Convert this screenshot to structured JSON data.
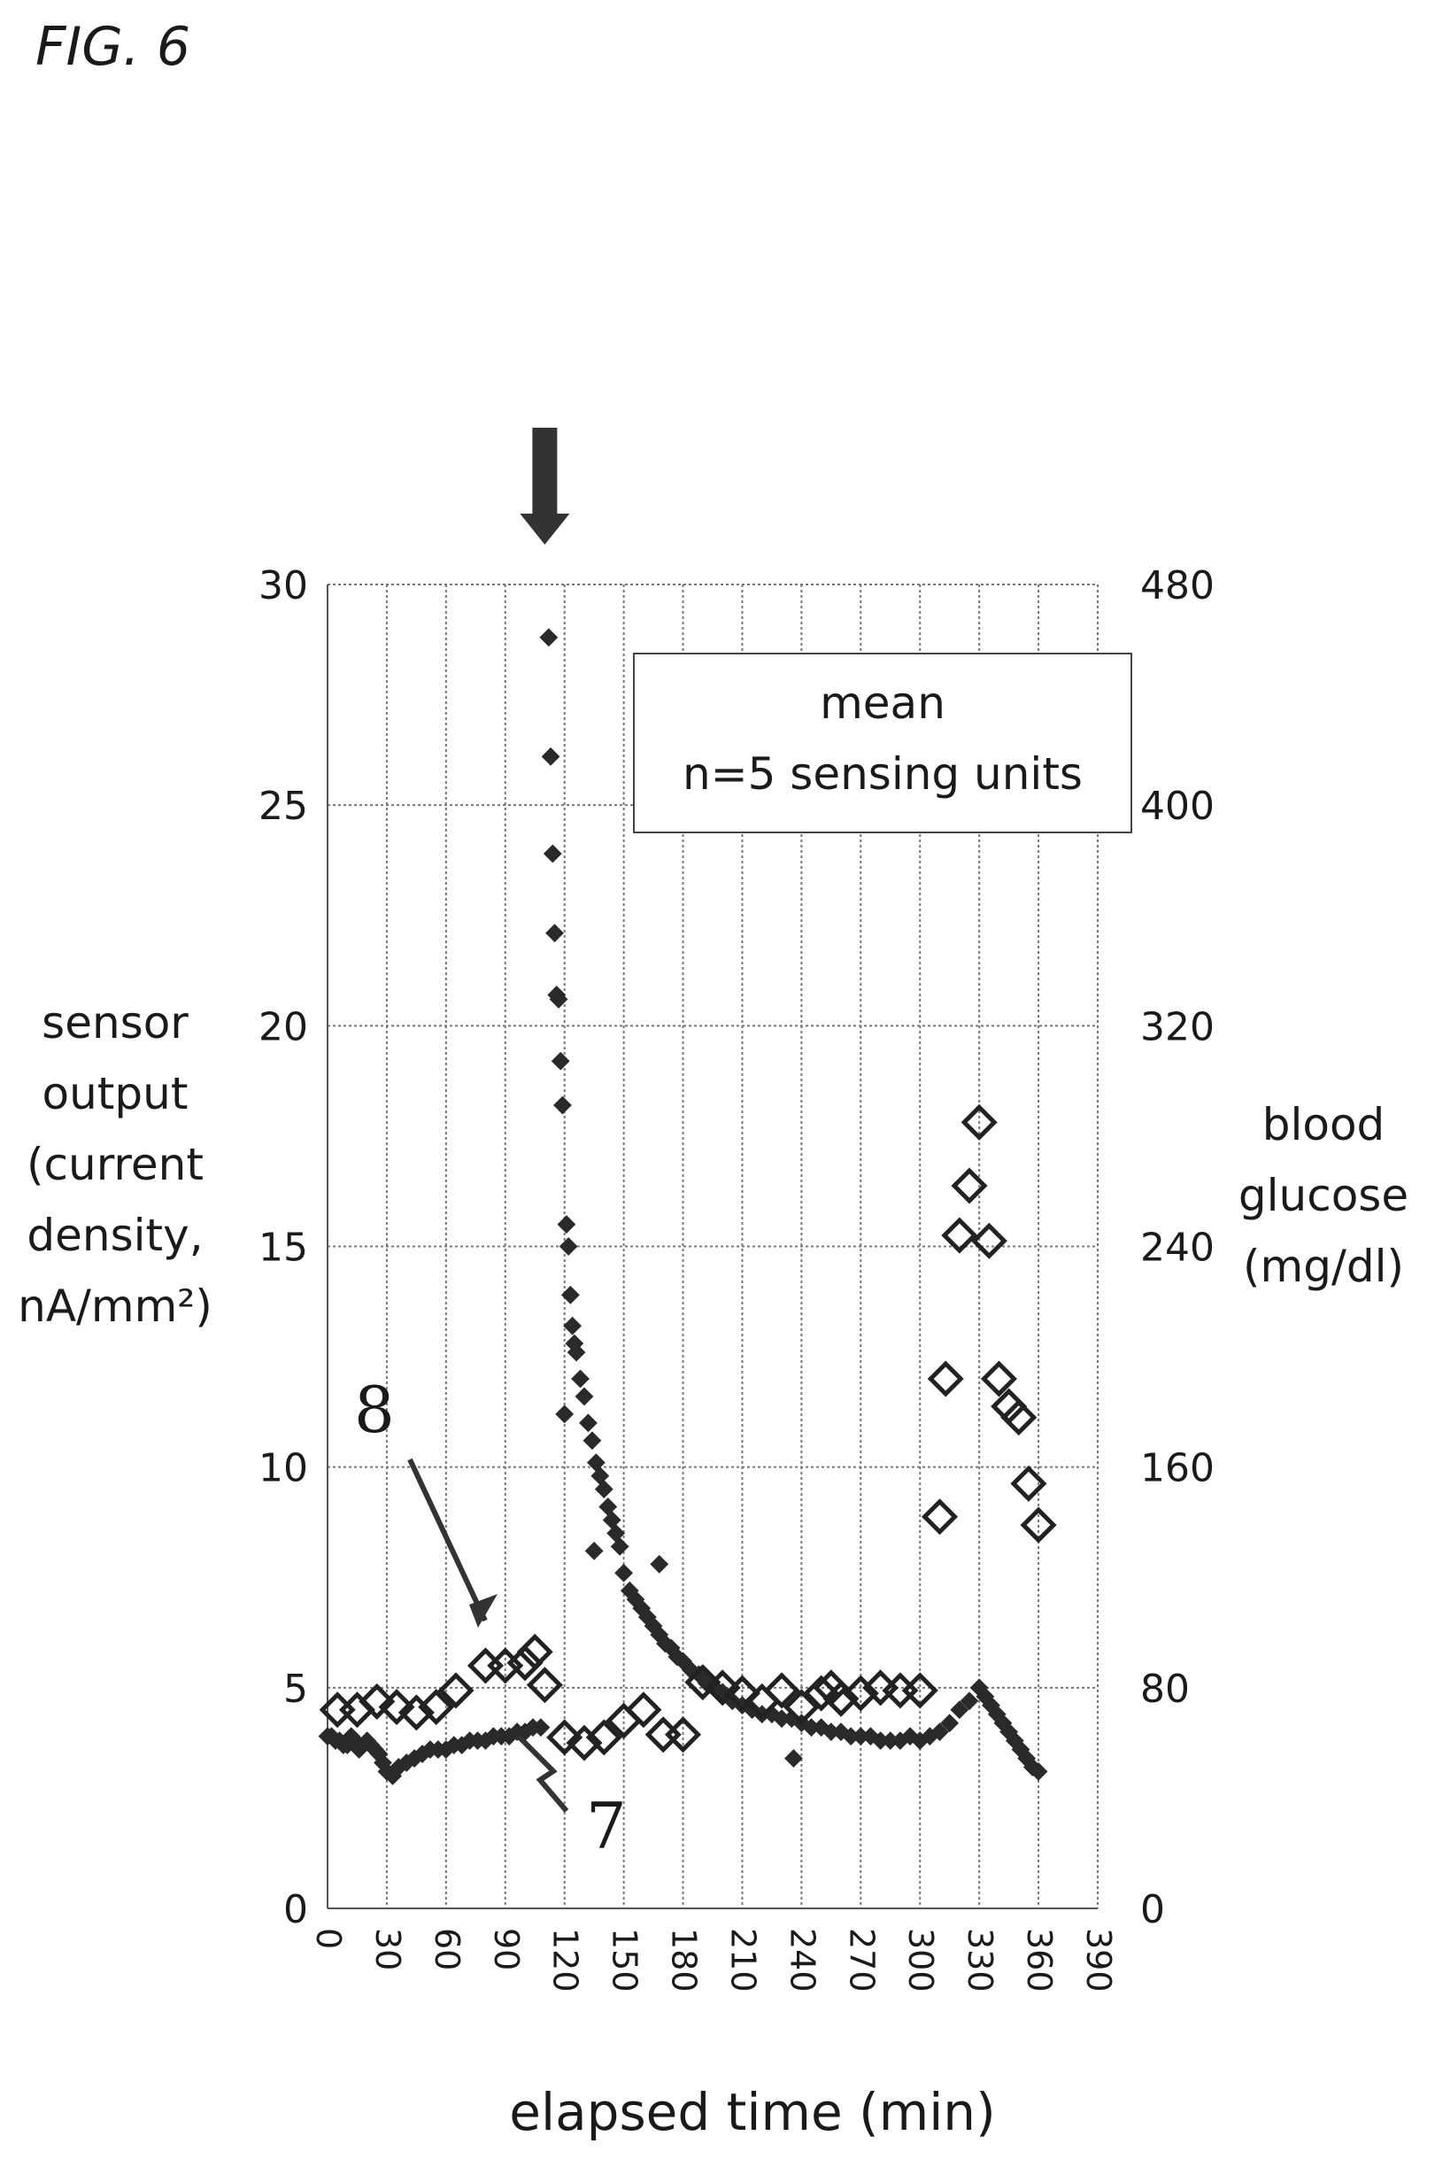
{
  "figure_label": "FIG. 6",
  "chart_data": {
    "type": "scatter",
    "title": "",
    "xlabel": "elapsed time (min)",
    "ylabel_left": [
      "sensor",
      "output",
      "(current",
      "density,",
      "nA/mm²)"
    ],
    "ylabel_right": [
      "blood",
      "glucose",
      "(mg/dl)"
    ],
    "x_ticks": [
      "0",
      "30",
      "60",
      "90",
      "120",
      "150",
      "180",
      "210",
      "240",
      "270",
      "300",
      "330",
      "360",
      "390"
    ],
    "y_left_ticks": [
      "0",
      "5",
      "10",
      "15",
      "20",
      "25",
      "30"
    ],
    "y_right_ticks": [
      "0",
      "80",
      "160",
      "240",
      "320",
      "400",
      "480"
    ],
    "xlim": [
      0,
      390
    ],
    "ylim_left": [
      0,
      30
    ],
    "ylim_right": [
      0,
      480
    ],
    "grid": true,
    "legend_box": [
      "mean",
      "n=5 sensing units"
    ],
    "annotations": {
      "arrow_at_x": 110,
      "label_8": "8",
      "label_7": "7"
    },
    "series": [
      {
        "marker": "filled-diamond",
        "axis": "left",
        "x": [
          0,
          2,
          4,
          6,
          8,
          10,
          12,
          14,
          16,
          18,
          20,
          22,
          24,
          26,
          28,
          30,
          33,
          36,
          40,
          44,
          48,
          52,
          56,
          60,
          64,
          68,
          72,
          76,
          80,
          84,
          88,
          92,
          96,
          100,
          104,
          108,
          112,
          113,
          114,
          115,
          116,
          117,
          118,
          119,
          120,
          121,
          122,
          123,
          124,
          125,
          126,
          128,
          130,
          132,
          134,
          136,
          138,
          140,
          142,
          144,
          146,
          148,
          150,
          153,
          156,
          159,
          162,
          165,
          168,
          171,
          174,
          177,
          180,
          184,
          188,
          192,
          196,
          200,
          205,
          210,
          215,
          220,
          225,
          230,
          235,
          240,
          245,
          250,
          255,
          260,
          265,
          270,
          275,
          280,
          285,
          290,
          295,
          300,
          305,
          310,
          315,
          320,
          325,
          330,
          333,
          336,
          339,
          342,
          345,
          348,
          351,
          354,
          357,
          360,
          135,
          168,
          236
        ],
        "y": [
          3.9,
          3.9,
          3.8,
          3.8,
          3.7,
          3.7,
          3.9,
          3.8,
          3.6,
          3.7,
          3.8,
          3.7,
          3.6,
          3.5,
          3.3,
          3.1,
          3.0,
          3.2,
          3.3,
          3.4,
          3.5,
          3.6,
          3.6,
          3.6,
          3.7,
          3.7,
          3.8,
          3.8,
          3.8,
          3.9,
          3.9,
          3.9,
          4.0,
          4.0,
          4.1,
          4.1,
          28.8,
          26.1,
          23.9,
          22.1,
          20.7,
          20.6,
          19.2,
          18.2,
          11.2,
          15.5,
          15.0,
          13.9,
          13.2,
          12.8,
          12.6,
          12.0,
          11.6,
          11.0,
          10.6,
          10.1,
          9.8,
          9.5,
          9.1,
          8.8,
          8.5,
          8.2,
          7.6,
          7.2,
          7.0,
          6.8,
          6.6,
          6.4,
          6.2,
          6.0,
          5.9,
          5.7,
          5.6,
          5.4,
          5.3,
          5.1,
          5.0,
          4.9,
          4.7,
          4.6,
          4.5,
          4.4,
          4.4,
          4.3,
          4.3,
          4.2,
          4.1,
          4.1,
          4.0,
          4.0,
          3.9,
          3.9,
          3.9,
          3.8,
          3.8,
          3.8,
          3.9,
          3.8,
          3.9,
          4.0,
          4.2,
          4.5,
          4.7,
          5.0,
          4.8,
          4.6,
          4.4,
          4.2,
          4.0,
          3.8,
          3.6,
          3.4,
          3.2,
          3.1,
          8.1,
          7.8,
          3.4
        ]
      },
      {
        "marker": "open-diamond",
        "axis": "right",
        "x": [
          5,
          15,
          25,
          35,
          45,
          55,
          65,
          80,
          90,
          100,
          105,
          110,
          120,
          130,
          140,
          150,
          160,
          170,
          180,
          190,
          200,
          210,
          220,
          230,
          240,
          250,
          255,
          260,
          270,
          280,
          290,
          300,
          310,
          313,
          320,
          325,
          330,
          335,
          340,
          345,
          350,
          355,
          360
        ],
        "y": [
          72,
          72,
          75,
          73,
          71,
          73,
          79,
          88,
          88,
          89,
          93,
          81,
          62,
          60,
          62,
          68,
          72,
          63,
          63,
          82,
          80,
          78,
          75,
          79,
          73,
          78,
          80,
          76,
          78,
          80,
          79,
          79,
          142,
          192,
          244,
          262,
          285,
          242,
          192,
          182,
          178,
          154,
          139
        ]
      }
    ]
  }
}
